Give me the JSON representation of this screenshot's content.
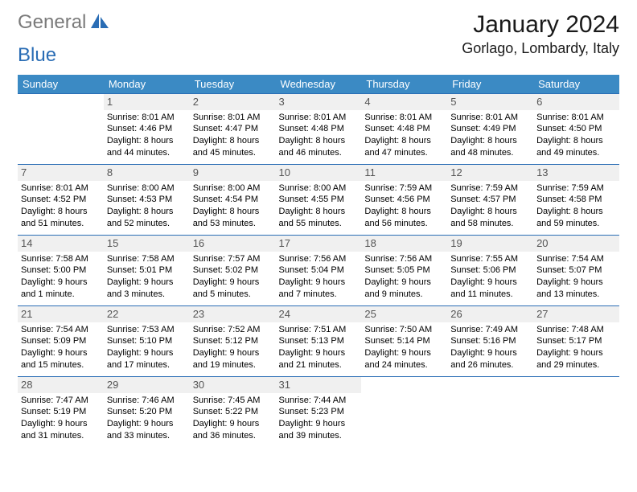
{
  "logo": {
    "part1": "General",
    "part2": "Blue",
    "icon_fill": "#2a6db5"
  },
  "header": {
    "title": "January 2024",
    "location": "Gorlago, Lombardy, Italy"
  },
  "styling": {
    "header_bg": "#3b8ac4",
    "header_fg": "#ffffff",
    "daynum_bg": "#f0f0f0",
    "daynum_fg": "#555555",
    "border_color": "#2a6db5",
    "body_font_size_pt": 8,
    "title_font_size_pt": 22,
    "location_font_size_pt": 13
  },
  "weekdays": [
    "Sunday",
    "Monday",
    "Tuesday",
    "Wednesday",
    "Thursday",
    "Friday",
    "Saturday"
  ],
  "first_weekday_index": 1,
  "days": [
    {
      "n": 1,
      "sunrise": "8:01 AM",
      "sunset": "4:46 PM",
      "daylight": "8 hours and 44 minutes."
    },
    {
      "n": 2,
      "sunrise": "8:01 AM",
      "sunset": "4:47 PM",
      "daylight": "8 hours and 45 minutes."
    },
    {
      "n": 3,
      "sunrise": "8:01 AM",
      "sunset": "4:48 PM",
      "daylight": "8 hours and 46 minutes."
    },
    {
      "n": 4,
      "sunrise": "8:01 AM",
      "sunset": "4:48 PM",
      "daylight": "8 hours and 47 minutes."
    },
    {
      "n": 5,
      "sunrise": "8:01 AM",
      "sunset": "4:49 PM",
      "daylight": "8 hours and 48 minutes."
    },
    {
      "n": 6,
      "sunrise": "8:01 AM",
      "sunset": "4:50 PM",
      "daylight": "8 hours and 49 minutes."
    },
    {
      "n": 7,
      "sunrise": "8:01 AM",
      "sunset": "4:52 PM",
      "daylight": "8 hours and 51 minutes."
    },
    {
      "n": 8,
      "sunrise": "8:00 AM",
      "sunset": "4:53 PM",
      "daylight": "8 hours and 52 minutes."
    },
    {
      "n": 9,
      "sunrise": "8:00 AM",
      "sunset": "4:54 PM",
      "daylight": "8 hours and 53 minutes."
    },
    {
      "n": 10,
      "sunrise": "8:00 AM",
      "sunset": "4:55 PM",
      "daylight": "8 hours and 55 minutes."
    },
    {
      "n": 11,
      "sunrise": "7:59 AM",
      "sunset": "4:56 PM",
      "daylight": "8 hours and 56 minutes."
    },
    {
      "n": 12,
      "sunrise": "7:59 AM",
      "sunset": "4:57 PM",
      "daylight": "8 hours and 58 minutes."
    },
    {
      "n": 13,
      "sunrise": "7:59 AM",
      "sunset": "4:58 PM",
      "daylight": "8 hours and 59 minutes."
    },
    {
      "n": 14,
      "sunrise": "7:58 AM",
      "sunset": "5:00 PM",
      "daylight": "9 hours and 1 minute."
    },
    {
      "n": 15,
      "sunrise": "7:58 AM",
      "sunset": "5:01 PM",
      "daylight": "9 hours and 3 minutes."
    },
    {
      "n": 16,
      "sunrise": "7:57 AM",
      "sunset": "5:02 PM",
      "daylight": "9 hours and 5 minutes."
    },
    {
      "n": 17,
      "sunrise": "7:56 AM",
      "sunset": "5:04 PM",
      "daylight": "9 hours and 7 minutes."
    },
    {
      "n": 18,
      "sunrise": "7:56 AM",
      "sunset": "5:05 PM",
      "daylight": "9 hours and 9 minutes."
    },
    {
      "n": 19,
      "sunrise": "7:55 AM",
      "sunset": "5:06 PM",
      "daylight": "9 hours and 11 minutes."
    },
    {
      "n": 20,
      "sunrise": "7:54 AM",
      "sunset": "5:07 PM",
      "daylight": "9 hours and 13 minutes."
    },
    {
      "n": 21,
      "sunrise": "7:54 AM",
      "sunset": "5:09 PM",
      "daylight": "9 hours and 15 minutes."
    },
    {
      "n": 22,
      "sunrise": "7:53 AM",
      "sunset": "5:10 PM",
      "daylight": "9 hours and 17 minutes."
    },
    {
      "n": 23,
      "sunrise": "7:52 AM",
      "sunset": "5:12 PM",
      "daylight": "9 hours and 19 minutes."
    },
    {
      "n": 24,
      "sunrise": "7:51 AM",
      "sunset": "5:13 PM",
      "daylight": "9 hours and 21 minutes."
    },
    {
      "n": 25,
      "sunrise": "7:50 AM",
      "sunset": "5:14 PM",
      "daylight": "9 hours and 24 minutes."
    },
    {
      "n": 26,
      "sunrise": "7:49 AM",
      "sunset": "5:16 PM",
      "daylight": "9 hours and 26 minutes."
    },
    {
      "n": 27,
      "sunrise": "7:48 AM",
      "sunset": "5:17 PM",
      "daylight": "9 hours and 29 minutes."
    },
    {
      "n": 28,
      "sunrise": "7:47 AM",
      "sunset": "5:19 PM",
      "daylight": "9 hours and 31 minutes."
    },
    {
      "n": 29,
      "sunrise": "7:46 AM",
      "sunset": "5:20 PM",
      "daylight": "9 hours and 33 minutes."
    },
    {
      "n": 30,
      "sunrise": "7:45 AM",
      "sunset": "5:22 PM",
      "daylight": "9 hours and 36 minutes."
    },
    {
      "n": 31,
      "sunrise": "7:44 AM",
      "sunset": "5:23 PM",
      "daylight": "9 hours and 39 minutes."
    }
  ],
  "labels": {
    "sunrise": "Sunrise: ",
    "sunset": "Sunset: ",
    "daylight": "Daylight: "
  }
}
